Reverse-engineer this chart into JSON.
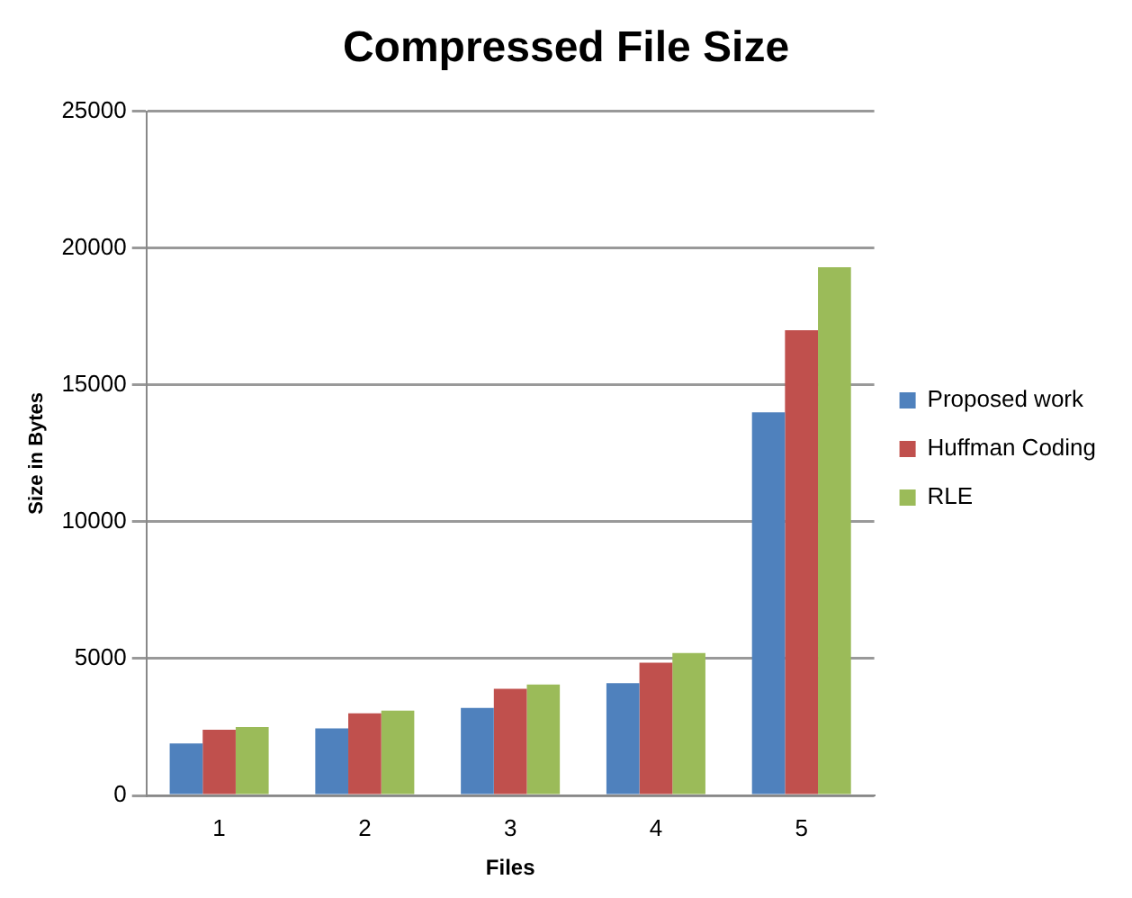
{
  "chart_data": {
    "type": "bar",
    "title": "Compressed File Size",
    "xlabel": "Files",
    "ylabel": "Size in Bytes",
    "categories": [
      "1",
      "2",
      "3",
      "4",
      "5"
    ],
    "series": [
      {
        "name": "Proposed work",
        "color": "#4f81bd",
        "values": [
          1900,
          2450,
          3200,
          4100,
          14000
        ]
      },
      {
        "name": "Huffman Coding",
        "color": "#c0504d",
        "values": [
          2400,
          3000,
          3900,
          4850,
          17000
        ]
      },
      {
        "name": "RLE",
        "color": "#9bbb59",
        "values": [
          2500,
          3100,
          4050,
          5200,
          19300
        ]
      }
    ],
    "ylim": [
      0,
      25000
    ],
    "yticks": [
      0,
      5000,
      10000,
      15000,
      20000,
      25000
    ],
    "grid": "y",
    "legend": "right"
  }
}
